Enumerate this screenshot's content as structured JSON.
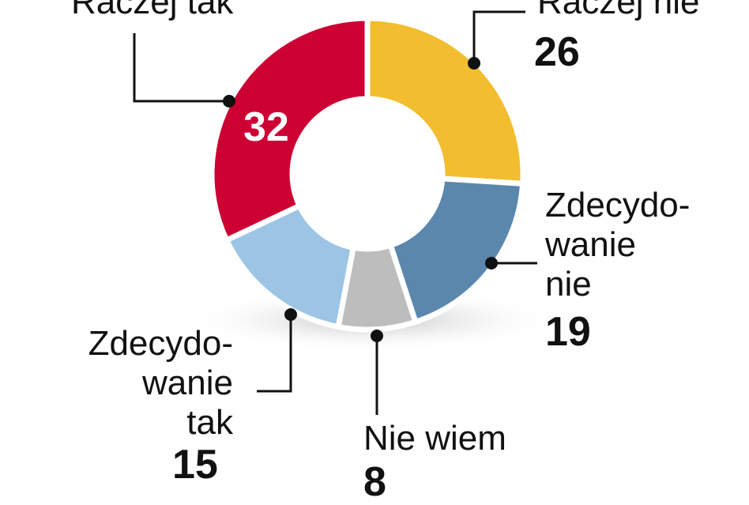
{
  "chart_data": {
    "type": "donut",
    "categories": [
      "Raczej nie",
      "Zdecydo-\nwanie\nnie",
      "Nie wiem",
      "Zdecydo-\nwanie\ntak",
      "Raczej tak"
    ],
    "values": [
      26,
      19,
      8,
      15,
      32
    ],
    "colors": [
      "#f2bd2e",
      "#5b87ad",
      "#bdbdbd",
      "#9cc4e4",
      "#cc0033"
    ]
  }
}
